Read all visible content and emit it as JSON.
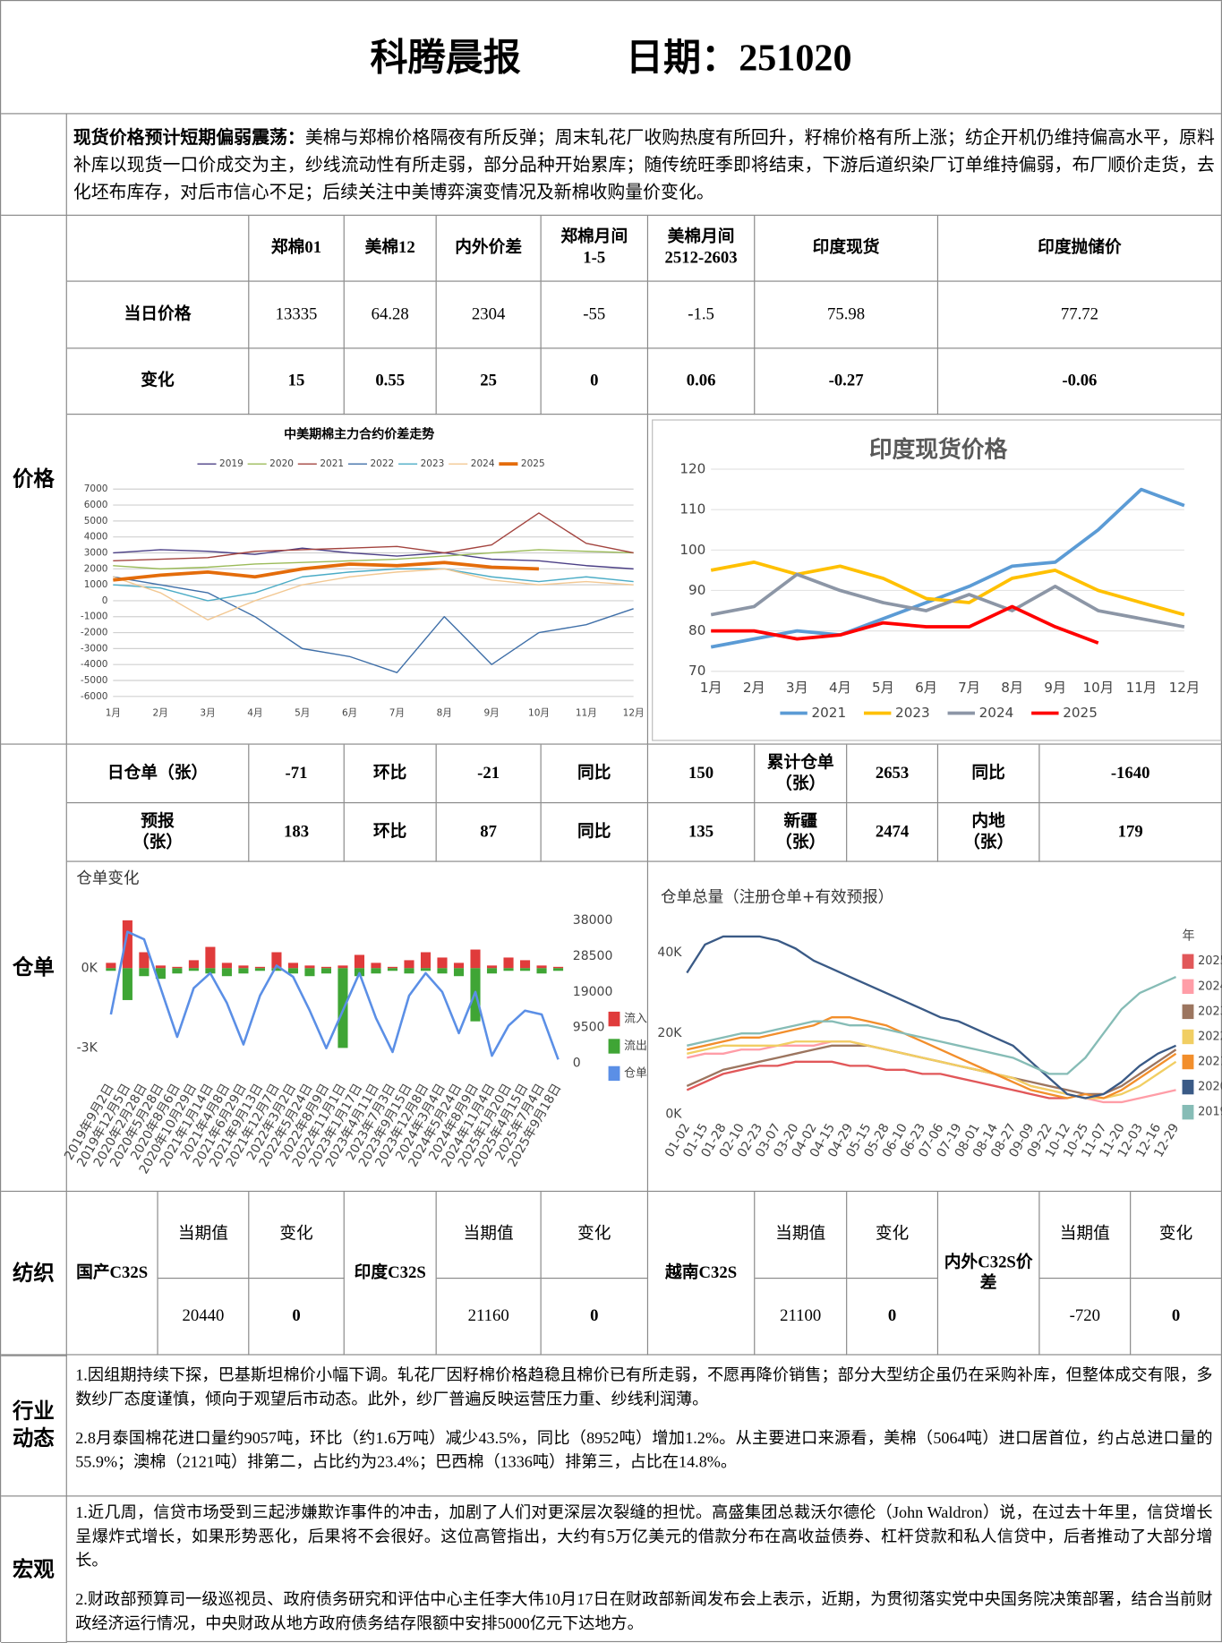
{
  "header": {
    "title": "科腾晨报",
    "date": "日期：251020"
  },
  "summary": {
    "lead": "现货价格预计短期偏弱震荡：",
    "text": "美棉与郑棉价格隔夜有所反弹；周末轧花厂收购热度有所回升，籽棉价格有所上涨；纺企开机仍维持偏高水平，原料补库以现货一口价成交为主，纱线流动性有所走弱，部分品种开始累库；随传统旺季即将结束，下游后道织染厂订单维持偏弱，布厂顺价走货，去化坯布库存，对后市信心不足；后续关注中美博弈演变情况及新棉收购量价变化。"
  },
  "sections": [
    "价格",
    "仓单",
    "纺织",
    "行业动态",
    "宏观"
  ],
  "price_table": {
    "headers": [
      "郑棉01",
      "美棉12",
      "内外价差",
      "郑棉月间\n1-5",
      "美棉月间\n2512-2603",
      "印度现货",
      "印度抛储价"
    ],
    "rows": [
      {
        "label": "当日价格",
        "values": [
          "13335",
          "64.28",
          "2304",
          "-55",
          "-1.5",
          "75.98",
          "77.72"
        ]
      },
      {
        "label": "变化",
        "values": [
          "15",
          "0.55",
          "25",
          "0",
          "0.06",
          "-0.27",
          "-0.06"
        ]
      }
    ]
  },
  "warehouse_table": {
    "rows": [
      [
        "日仓单（张）",
        "-71",
        "环比",
        "-21",
        "同比",
        "150",
        "累计仓单\n（张）",
        "2653",
        "同比",
        "-1640"
      ],
      [
        "预报\n（张）",
        "183",
        "环比",
        "87",
        "同比",
        "135",
        "新疆\n（张）",
        "2474",
        "内地\n（张）",
        "179"
      ]
    ]
  },
  "textile_table": {
    "groups": [
      {
        "name": "国产C32S",
        "headers": [
          "当期值",
          "变化"
        ],
        "values": [
          "20440",
          "0"
        ]
      },
      {
        "name": "印度C32S",
        "headers": [
          "当期值",
          "变化"
        ],
        "values": [
          "21160",
          "0"
        ]
      },
      {
        "name": "越南C32S",
        "headers": [
          "当期值",
          "变化"
        ],
        "values": [
          "21100",
          "0"
        ]
      },
      {
        "name": "内外C32S价差",
        "headers": [
          "当期值",
          "变化"
        ],
        "values": [
          "-720",
          "0"
        ]
      }
    ]
  },
  "industry": {
    "paragraphs": [
      "1.因组期持续下探，巴基斯坦棉价小幅下调。轧花厂因籽棉价格趋稳且棉价已有所走弱，不愿再降价销售；部分大型纺企虽仍在采购补库，但整体成交有限，多数纱厂态度谨慎，倾向于观望后市动态。此外，纱厂普遍反映运营压力重、纱线利润薄。",
      "2.8月泰国棉花进口量约9057吨，环比（约1.6万吨）减少43.5%，同比（8952吨）增加1.2%。从主要进口来源看，美棉（5064吨）进口居首位，约占总进口量的55.9%；澳棉（2121吨）排第二，占比约为23.4%；巴西棉（1336吨）排第三，占比在14.8%。"
    ]
  },
  "macro": {
    "paragraphs": [
      "1.近几周，信贷市场受到三起涉嫌欺诈事件的冲击，加剧了人们对更深层次裂缝的担忧。高盛集团总裁沃尔德伦（John Waldron）说，在过去十年里，信贷增长呈爆炸式增长，如果形势恶化，后果将不会很好。这位高管指出，大约有5万亿美元的借款分布在高收益债券、杠杆贷款和私人信贷中，后者推动了大部分增长。",
      "2.财政部预算司一级巡视员、政府债务研究和评估中心主任李大伟10月17日在财政部新闻发布会上表示，近期，为贯彻落实党中央国务院决策部署，结合当前财政经济运行情况，中央财政从地方政府债务结存限额中安排5000亿元下达地方。"
    ]
  },
  "chart_data": [
    {
      "type": "line",
      "title": "中美期棉主力合约价差走势",
      "legend": "top",
      "grid": true,
      "categories": [
        "1月",
        "2月",
        "3月",
        "4月",
        "5月",
        "6月",
        "7月",
        "8月",
        "9月",
        "10月",
        "11月",
        "12月"
      ],
      "ylim": [
        -6000,
        7000
      ],
      "yticks": [
        -6000,
        -5000,
        -4000,
        -3000,
        -2000,
        -1000,
        0,
        1000,
        2000,
        3000,
        4000,
        5000,
        6000,
        7000
      ],
      "series": [
        {
          "name": "2019",
          "color": "#4b3f86",
          "values": [
            3000,
            3200,
            3100,
            2900,
            3300,
            3000,
            2800,
            3000,
            2600,
            2500,
            2200,
            2000
          ]
        },
        {
          "name": "2020",
          "color": "#9bbb59",
          "values": [
            2200,
            2000,
            2100,
            2300,
            2400,
            2500,
            2600,
            2800,
            3000,
            3200,
            3100,
            3000
          ]
        },
        {
          "name": "2021",
          "color": "#a3443f",
          "values": [
            2500,
            2600,
            2700,
            3100,
            3200,
            3300,
            3400,
            3000,
            3500,
            5500,
            3600,
            3000
          ]
        },
        {
          "name": "2022",
          "color": "#3f6fa8",
          "values": [
            1500,
            1000,
            500,
            -1000,
            -3000,
            -3500,
            -4500,
            -1000,
            -4000,
            -2000,
            -1500,
            -500
          ]
        },
        {
          "name": "2023",
          "color": "#4bacc6",
          "values": [
            1000,
            800,
            0,
            500,
            1500,
            1800,
            2000,
            2000,
            1500,
            1200,
            1500,
            1200
          ]
        },
        {
          "name": "2024",
          "color": "#f2c893",
          "values": [
            1500,
            500,
            -1200,
            0,
            1000,
            1500,
            1800,
            2000,
            1300,
            1000,
            1200,
            1000
          ]
        },
        {
          "name": "2025",
          "color": "#e46c0a",
          "values": [
            1300,
            1600,
            1800,
            1500,
            2000,
            2300,
            2200,
            2400,
            2100,
            2000,
            null,
            null
          ]
        }
      ]
    },
    {
      "type": "line",
      "title": "印度现货价格",
      "legend": "bottom",
      "grid": true,
      "categories": [
        "1月",
        "2月",
        "3月",
        "4月",
        "5月",
        "6月",
        "7月",
        "8月",
        "9月",
        "10月",
        "11月",
        "12月"
      ],
      "ylim": [
        70,
        120
      ],
      "yticks": [
        70,
        80,
        90,
        100,
        110,
        120
      ],
      "series": [
        {
          "name": "2021",
          "color": "#5b9bd5",
          "values": [
            76,
            78,
            80,
            79,
            83,
            87,
            91,
            96,
            97,
            105,
            115,
            111
          ]
        },
        {
          "name": "2023",
          "color": "#ffc000",
          "values": [
            95,
            97,
            94,
            96,
            93,
            88,
            87,
            93,
            95,
            90,
            87,
            84
          ]
        },
        {
          "name": "2024",
          "color": "#8c96a6",
          "values": [
            84,
            86,
            94,
            90,
            87,
            85,
            89,
            85,
            91,
            85,
            83,
            81
          ]
        },
        {
          "name": "2025",
          "color": "#ff0000",
          "values": [
            80,
            80,
            78,
            79,
            82,
            81,
            81,
            86,
            81,
            77,
            null,
            null
          ]
        }
      ]
    },
    {
      "type": "combo",
      "title": "仓单变化",
      "legend": "right",
      "grid": false,
      "categories": [
        "2019年9月2日",
        "2019年12月5日",
        "2020年2月28日",
        "2020年5月28日",
        "2020年8月6日",
        "2020年10月29日",
        "2021年1月14日",
        "2021年4月8日",
        "2021年6月29日",
        "2021年9月13日",
        "2021年12月7日",
        "2022年3月2日",
        "2022年5月24日",
        "2022年8月9日",
        "2022年11月1日",
        "2023年1月17日",
        "2023年4月11日",
        "2023年7月3日",
        "2023年9月15日",
        "2023年12月8日",
        "2024年3月4日",
        "2024年5月24日",
        "2024年8月9日",
        "2024年11月4日",
        "2025年1月20日",
        "2025年4月15日",
        "2025年7月4日",
        "2025年9月18日"
      ],
      "ylim": [
        -4000,
        2500
      ],
      "yticks": [
        {
          "value": -3000,
          "label": "-3K"
        },
        {
          "value": 0,
          "label": "0K"
        }
      ],
      "y2lim": [
        -3000,
        43000
      ],
      "y2ticks": [
        0,
        9500,
        19000,
        28500,
        38000
      ],
      "series": [
        {
          "name": "流入",
          "type": "bar",
          "color": "#e03b3b",
          "values": [
            200,
            1800,
            600,
            100,
            50,
            300,
            800,
            200,
            100,
            50,
            600,
            200,
            100,
            50,
            100,
            500,
            200,
            50,
            300,
            600,
            400,
            200,
            700,
            100,
            400,
            300,
            100,
            50
          ]
        },
        {
          "name": "流出",
          "type": "bar",
          "color": "#3fa535",
          "values": [
            -100,
            -1200,
            -300,
            -400,
            -200,
            -100,
            -200,
            -300,
            -200,
            -100,
            -100,
            -200,
            -300,
            -200,
            -3000,
            -300,
            -200,
            -100,
            -200,
            -100,
            -200,
            -300,
            -2000,
            -200,
            -100,
            -100,
            -200,
            -100
          ]
        },
        {
          "name": "仓单",
          "type": "line",
          "axis": "y2",
          "color": "#5b8fe6",
          "values": [
            13000,
            35000,
            33000,
            20000,
            7000,
            20000,
            24000,
            16000,
            5000,
            18000,
            26000,
            23000,
            14000,
            4000,
            14000,
            24000,
            12000,
            3000,
            18000,
            24000,
            19000,
            8000,
            19000,
            2000,
            10000,
            14000,
            13000,
            1000
          ]
        }
      ]
    },
    {
      "type": "line",
      "title": "仓单总量（注册仓单+有效预报）",
      "legend": "right",
      "legend_title": "年",
      "grid": false,
      "categories": [
        "01-02",
        "01-15",
        "01-28",
        "02-10",
        "02-23",
        "03-07",
        "03-20",
        "04-02",
        "04-15",
        "04-29",
        "05-15",
        "05-28",
        "06-10",
        "06-23",
        "07-06",
        "07-19",
        "08-01",
        "08-14",
        "08-27",
        "09-09",
        "09-22",
        "10-12",
        "10-25",
        "11-07",
        "11-20",
        "12-03",
        "12-16",
        "12-29"
      ],
      "ylim": [
        0,
        50000
      ],
      "yticks": [
        {
          "value": 0,
          "label": "0K"
        },
        {
          "value": 20000,
          "label": "20K"
        },
        {
          "value": 40000,
          "label": "40K"
        }
      ],
      "series": [
        {
          "name": "2025",
          "color": "#e15759",
          "values": [
            6000,
            8000,
            10000,
            11000,
            12000,
            12000,
            13000,
            13000,
            13000,
            12000,
            12000,
            11000,
            11000,
            10000,
            10000,
            9000,
            8000,
            7000,
            6000,
            5000,
            4000,
            4000,
            null,
            null,
            null,
            null,
            null,
            null
          ]
        },
        {
          "name": "2024",
          "color": "#ff9da7",
          "values": [
            14000,
            15000,
            15000,
            16000,
            16000,
            17000,
            17000,
            17000,
            18000,
            18000,
            17000,
            16000,
            15000,
            14000,
            13000,
            12000,
            11000,
            10000,
            9000,
            7000,
            6000,
            5000,
            4000,
            3000,
            3000,
            4000,
            5000,
            6000
          ]
        },
        {
          "name": "2023",
          "color": "#9c755f",
          "values": [
            7000,
            9000,
            11000,
            12000,
            13000,
            14000,
            15000,
            16000,
            17000,
            17000,
            17000,
            16000,
            15000,
            14000,
            13000,
            12000,
            11000,
            10000,
            9000,
            8000,
            7000,
            6000,
            5000,
            5000,
            7000,
            10000,
            13000,
            16000
          ]
        },
        {
          "name": "2022",
          "color": "#f1ce63",
          "values": [
            15000,
            16000,
            17000,
            17000,
            17000,
            17000,
            18000,
            18000,
            18000,
            18000,
            17000,
            16000,
            15000,
            14000,
            13000,
            12000,
            11000,
            10000,
            9000,
            7000,
            6000,
            5000,
            4000,
            4000,
            5000,
            7000,
            10000,
            13000
          ]
        },
        {
          "name": "2021",
          "color": "#f28e2b",
          "values": [
            16000,
            17000,
            18000,
            19000,
            19000,
            20000,
            21000,
            22000,
            24000,
            24000,
            23000,
            22000,
            20000,
            18000,
            16000,
            14000,
            12000,
            10000,
            8000,
            6000,
            5000,
            4000,
            5000,
            4000,
            6000,
            9000,
            12000,
            15000
          ]
        },
        {
          "name": "2020",
          "color": "#3a5a86",
          "values": [
            35000,
            42000,
            44000,
            44000,
            44000,
            43000,
            41000,
            38000,
            36000,
            34000,
            32000,
            30000,
            28000,
            26000,
            24000,
            23000,
            21000,
            19000,
            17000,
            13000,
            9000,
            5000,
            4000,
            5000,
            8000,
            12000,
            15000,
            17000
          ]
        },
        {
          "name": "2019",
          "color": "#86bcb6",
          "values": [
            17000,
            18000,
            19000,
            20000,
            20000,
            21000,
            22000,
            23000,
            23000,
            22000,
            22000,
            21000,
            20000,
            19000,
            18000,
            17000,
            16000,
            15000,
            14000,
            12000,
            10000,
            10000,
            14000,
            20000,
            26000,
            30000,
            32000,
            34000
          ]
        }
      ]
    }
  ]
}
